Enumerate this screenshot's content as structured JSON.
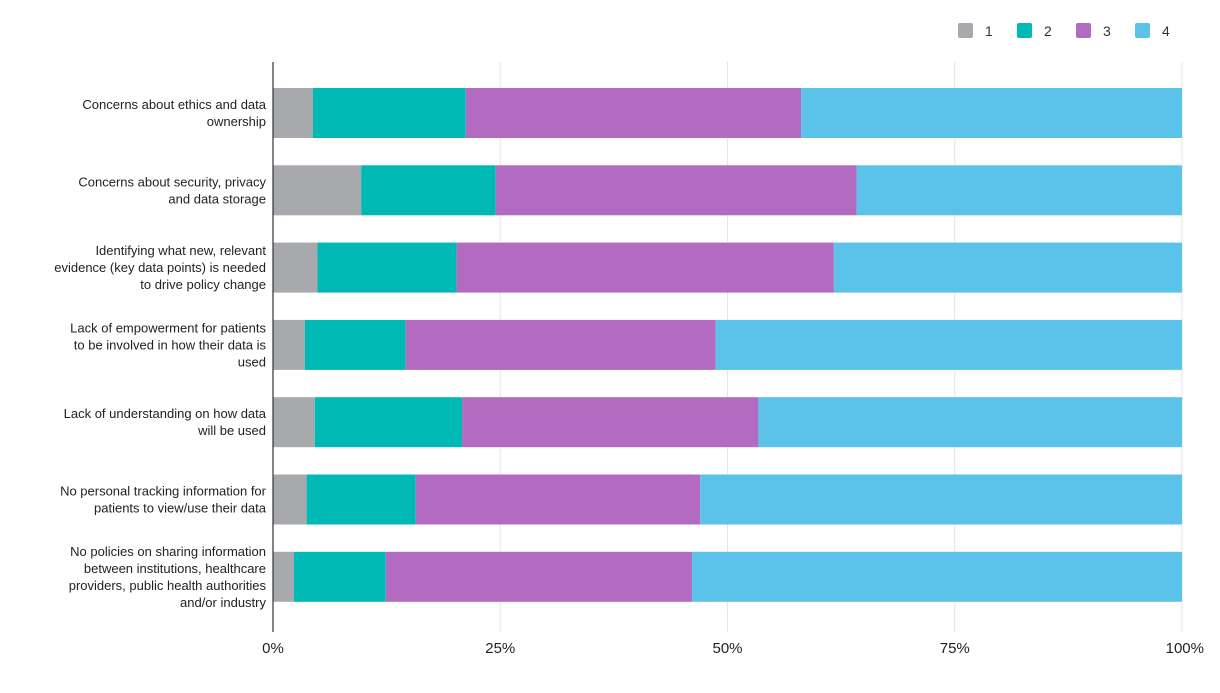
{
  "chart_data": {
    "type": "bar",
    "orientation": "horizontal",
    "stacked": true,
    "normalized": true,
    "categories": [
      [
        "Concerns about ethics and data",
        "ownership"
      ],
      [
        "Concerns about security, privacy",
        "and data storage"
      ],
      [
        "Identifying what new, relevant",
        "evidence (key data points) is needed",
        "to drive policy change"
      ],
      [
        "Lack of empowerment for patients",
        "to be involved in how their data is",
        "used"
      ],
      [
        "Lack of understanding on how data",
        "will be used"
      ],
      [
        "No personal tracking information for",
        "patients to view/use their data"
      ],
      [
        "No policies on sharing information",
        "between institutions, healthcare",
        "providers, public health authorities",
        "and/or industry"
      ]
    ],
    "series": [
      {
        "name": "1",
        "color": "#a7a9ac",
        "values": [
          4.4,
          9.7,
          4.9,
          3.5,
          4.6,
          3.7,
          2.3
        ]
      },
      {
        "name": "2",
        "color": "#00b8b4",
        "values": [
          16.8,
          14.8,
          15.3,
          11.1,
          16.2,
          12.0,
          10.1
        ]
      },
      {
        "name": "3",
        "color": "#b26bc0",
        "values": [
          36.9,
          39.7,
          41.5,
          34.1,
          32.6,
          31.3,
          33.7
        ]
      },
      {
        "name": "4",
        "color": "#5bc2ea",
        "values": [
          41.9,
          35.8,
          38.3,
          51.3,
          46.6,
          53.0,
          53.9
        ]
      }
    ],
    "xticks": [
      "0%",
      "25%",
      "50%",
      "75%",
      "100%"
    ],
    "xlim": [
      0,
      100
    ],
    "grid": true,
    "legend": "top-right",
    "title": "",
    "xlabel": "",
    "ylabel": ""
  }
}
